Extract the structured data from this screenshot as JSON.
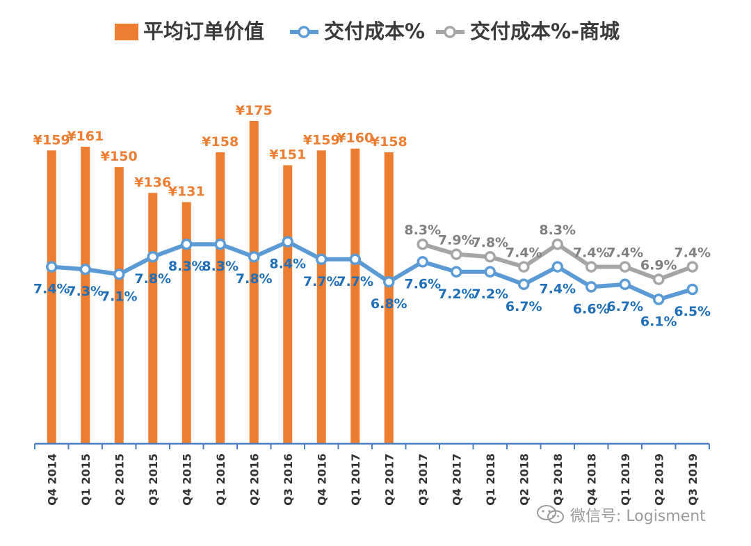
{
  "chart_data": {
    "type": "bar",
    "categories": [
      "Q4 2014",
      "Q1 2015",
      "Q2 2015",
      "Q3 2015",
      "Q4 2015",
      "Q1 2016",
      "Q2 2016",
      "Q3 2016",
      "Q4 2016",
      "Q1 2017",
      "Q2 2017",
      "Q3 2017",
      "Q4 2017",
      "Q1 2018",
      "Q2 2018",
      "Q3 2018",
      "Q4 2018",
      "Q1 2019",
      "Q2 2019",
      "Q3 2019"
    ],
    "series": [
      {
        "name": "平均订单价值",
        "kind": "bar",
        "color": "#ed7d31",
        "values": [
          159,
          161,
          150,
          136,
          131,
          158,
          175,
          151,
          159,
          160,
          158,
          null,
          null,
          null,
          null,
          null,
          null,
          null,
          null,
          null
        ],
        "labels": [
          "¥159",
          "¥161",
          "¥150",
          "¥136",
          "¥131",
          "¥158",
          "¥175",
          "¥151",
          "¥159",
          "¥160",
          "¥158",
          "",
          "",
          "",
          "",
          "",
          "",
          "",
          "",
          ""
        ]
      },
      {
        "name": "交付成本%",
        "kind": "line",
        "color": "#5b9bd5",
        "label_color": "#1f6fb8",
        "values": [
          7.4,
          7.3,
          7.1,
          7.8,
          8.3,
          8.3,
          7.8,
          8.4,
          7.7,
          7.7,
          6.8,
          7.6,
          7.2,
          7.2,
          6.7,
          7.4,
          6.6,
          6.7,
          6.1,
          6.5
        ],
        "labels": [
          "7.4%",
          "7.3%",
          "7.1%",
          "7.8%",
          "8.3%",
          "8.3%",
          "7.8%",
          "8.4%",
          "7.7%",
          "7.7%",
          "6.8%",
          "7.6%",
          "7.2%",
          "7.2%",
          "6.7%",
          "7.4%",
          "6.6%",
          "6.7%",
          "6.1%",
          "6.5%"
        ]
      },
      {
        "name": "交付成本%-商城",
        "kind": "line",
        "color": "#a5a5a5",
        "label_color": "#7f7f7f",
        "values": [
          null,
          null,
          null,
          null,
          null,
          null,
          null,
          null,
          null,
          null,
          null,
          8.3,
          7.9,
          7.8,
          7.4,
          8.3,
          7.4,
          7.4,
          6.9,
          7.4
        ],
        "labels": [
          "",
          "",
          "",
          "",
          "",
          "",
          "",
          "",
          "",
          "",
          "",
          "8.3%",
          "7.9%",
          "7.8%",
          "7.4%",
          "8.3%",
          "7.4%",
          "7.4%",
          "6.9%",
          "7.4%"
        ]
      }
    ],
    "legend_position": "top",
    "grid": false,
    "axis_color": "#4a7ec2"
  },
  "watermark": {
    "text": "微信号: Logisment",
    "icon": "wechat-icon"
  }
}
